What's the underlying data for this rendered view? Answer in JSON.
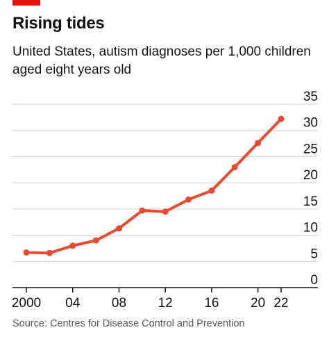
{
  "colors": {
    "brand": "#E3120B",
    "line": "#E64B2F",
    "grid": "#C8CED2",
    "axis": "#121212",
    "text": "#121212",
    "source_text": "#555555"
  },
  "chart_data": {
    "type": "line",
    "title": "Rising tides",
    "subtitle": "United States, autism diagnoses per 1,000 children aged eight years old",
    "source": "Source: Centres for Disease Control and Prevention",
    "xlabel": "",
    "ylabel": "",
    "x": [
      2000,
      2002,
      2004,
      2006,
      2008,
      2010,
      2012,
      2014,
      2016,
      2018,
      2020,
      2022
    ],
    "x_tick_values": [
      2000,
      2004,
      2008,
      2012,
      2016,
      2020,
      2022
    ],
    "x_tick_labels": [
      "2000",
      "04",
      "08",
      "12",
      "16",
      "20",
      "22"
    ],
    "y_ticks": [
      0,
      5,
      10,
      15,
      20,
      25,
      30,
      35
    ],
    "xlim": [
      1999.8,
      2023.6
    ],
    "ylim": [
      0,
      35
    ],
    "y_axis_side": "right",
    "grid": true,
    "markers": true,
    "series": [
      {
        "values": [
          6.7,
          6.6,
          8.0,
          9.0,
          11.3,
          14.7,
          14.5,
          16.8,
          18.5,
          23.0,
          27.6,
          32.2
        ]
      }
    ]
  }
}
